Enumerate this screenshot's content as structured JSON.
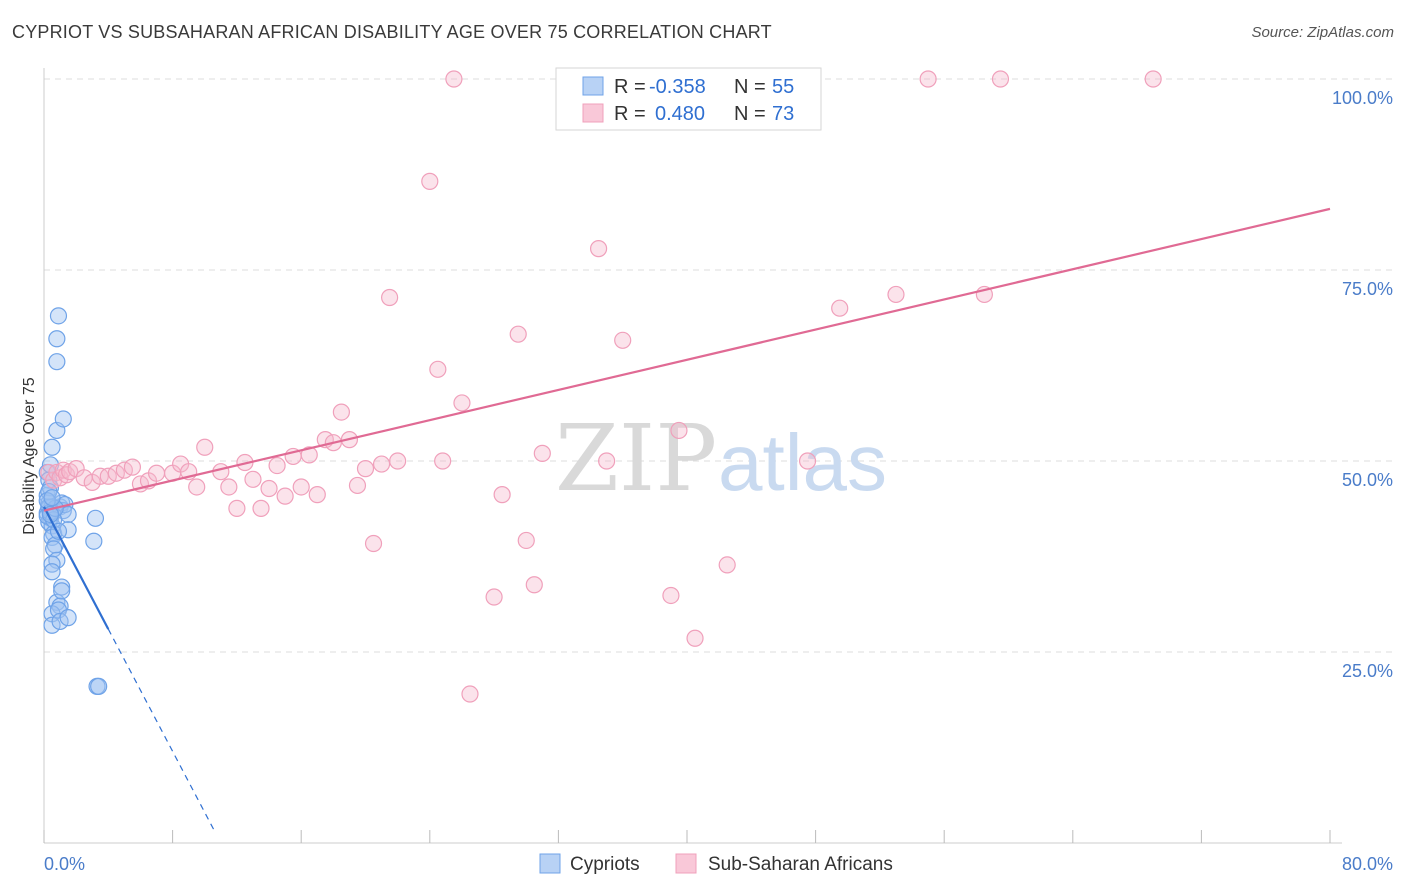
{
  "header": {
    "title": "CYPRIOT VS SUBSAHARAN AFRICAN DISABILITY AGE OVER 75 CORRELATION CHART",
    "source": "Source: ZipAtlas.com"
  },
  "watermark": {
    "zip": "ZIP",
    "atlas": "atlas"
  },
  "colors": {
    "cypriot": "#6fa3e8",
    "cypriot_line": "#2f6fd1",
    "subsaharan": "#f0a0bb",
    "subsaharan_line": "#e06a94",
    "tick": "#4a7cc9",
    "grid": "#dddddd"
  },
  "legend": {
    "r_label": "R =",
    "n_label": "N =",
    "cypriot_r": "-0.358",
    "cypriot_n": "55",
    "subsaharan_r": "0.480",
    "subsaharan_n": "73"
  },
  "bottom_legend": {
    "cypriot": "Cypriots",
    "subsaharan": "Sub-Saharan Africans"
  },
  "chart_data": {
    "type": "scatter",
    "xlabel": "",
    "ylabel": "Disability Age Over 75",
    "xlim": [
      0,
      80
    ],
    "ylim": [
      0,
      100
    ],
    "x_tick_labels": [
      {
        "value": 0,
        "label": "0.0%"
      },
      {
        "value": 80,
        "label": "80.0%"
      }
    ],
    "y_tick_labels": [
      {
        "value": 25,
        "label": "25.0%"
      },
      {
        "value": 50,
        "label": "50.0%"
      },
      {
        "value": 75,
        "label": "75.0%"
      },
      {
        "value": 100,
        "label": "100.0%"
      }
    ],
    "x_minor_ticks": [
      0,
      8,
      16,
      24,
      32,
      40,
      48,
      56,
      64,
      72,
      80
    ],
    "grid": true,
    "series": [
      {
        "name": "Cypriots",
        "trend": {
          "x0": 0,
          "y0": 44.0,
          "x1": 4.0,
          "y1": 28.0,
          "dash_to_x": 10.6
        },
        "points": [
          [
            0.2,
            48.5
          ],
          [
            0.2,
            45.5
          ],
          [
            0.3,
            44.5
          ],
          [
            0.3,
            43.8
          ],
          [
            0.2,
            43.2
          ],
          [
            0.4,
            42.5
          ],
          [
            0.3,
            42.0
          ],
          [
            0.5,
            44.0
          ],
          [
            0.6,
            43.5
          ],
          [
            0.5,
            41.5
          ],
          [
            0.6,
            40.5
          ],
          [
            0.5,
            40.0
          ],
          [
            0.7,
            39.0
          ],
          [
            0.6,
            38.5
          ],
          [
            0.8,
            37.0
          ],
          [
            0.5,
            36.5
          ],
          [
            0.5,
            35.5
          ],
          [
            0.3,
            47.5
          ],
          [
            0.4,
            46.5
          ],
          [
            0.4,
            49.5
          ],
          [
            0.5,
            51.8
          ],
          [
            0.8,
            54.0
          ],
          [
            1.2,
            55.5
          ],
          [
            0.8,
            63.0
          ],
          [
            0.8,
            66.0
          ],
          [
            0.9,
            69.0
          ],
          [
            1.0,
            44.0
          ],
          [
            1.1,
            44.5
          ],
          [
            1.2,
            43.5
          ],
          [
            1.3,
            44.3
          ],
          [
            1.5,
            43.0
          ],
          [
            1.5,
            41.0
          ],
          [
            0.8,
            31.5
          ],
          [
            1.0,
            31.0
          ],
          [
            1.1,
            33.5
          ],
          [
            1.1,
            33.0
          ],
          [
            0.5,
            30.0
          ],
          [
            0.5,
            28.5
          ],
          [
            0.9,
            30.5
          ],
          [
            1.0,
            29.0
          ],
          [
            1.5,
            29.5
          ],
          [
            3.2,
            42.5
          ],
          [
            3.1,
            39.5
          ],
          [
            3.3,
            20.5
          ],
          [
            3.4,
            20.5
          ],
          [
            0.3,
            44.0
          ],
          [
            0.2,
            42.8
          ],
          [
            0.4,
            43.3
          ],
          [
            0.6,
            42.3
          ],
          [
            0.7,
            43.8
          ],
          [
            0.9,
            40.8
          ],
          [
            0.3,
            46.0
          ],
          [
            0.2,
            44.8
          ],
          [
            0.5,
            45.2
          ],
          [
            0.4,
            43.0
          ]
        ]
      },
      {
        "name": "Sub-Saharan Africans",
        "trend": {
          "x0": 0,
          "y0": 43.5,
          "x1": 80,
          "y1": 83.0
        },
        "points": [
          [
            0.3,
            48.5
          ],
          [
            0.6,
            47.5
          ],
          [
            0.8,
            48.5
          ],
          [
            1.0,
            47.8
          ],
          [
            1.2,
            48.8
          ],
          [
            1.4,
            48.2
          ],
          [
            1.6,
            48.6
          ],
          [
            2.0,
            49.0
          ],
          [
            2.5,
            47.8
          ],
          [
            3.0,
            47.2
          ],
          [
            3.5,
            48.0
          ],
          [
            4.0,
            48.0
          ],
          [
            4.5,
            48.4
          ],
          [
            5.0,
            48.8
          ],
          [
            5.5,
            49.2
          ],
          [
            6.0,
            47.0
          ],
          [
            6.5,
            47.4
          ],
          [
            7.0,
            48.4
          ],
          [
            8.0,
            48.4
          ],
          [
            8.5,
            49.6
          ],
          [
            9.0,
            48.6
          ],
          [
            9.5,
            46.6
          ],
          [
            10.0,
            51.8
          ],
          [
            11.0,
            48.6
          ],
          [
            11.5,
            46.6
          ],
          [
            12.0,
            43.8
          ],
          [
            12.5,
            49.8
          ],
          [
            13.0,
            47.6
          ],
          [
            13.5,
            43.8
          ],
          [
            14.0,
            46.4
          ],
          [
            14.5,
            49.4
          ],
          [
            15.0,
            45.4
          ],
          [
            15.5,
            50.6
          ],
          [
            16.0,
            46.6
          ],
          [
            16.5,
            50.8
          ],
          [
            17.0,
            45.6
          ],
          [
            17.5,
            52.8
          ],
          [
            18.0,
            52.4
          ],
          [
            18.5,
            56.4
          ],
          [
            19.0,
            52.8
          ],
          [
            19.5,
            46.8
          ],
          [
            20.0,
            49.0
          ],
          [
            20.5,
            39.2
          ],
          [
            21.0,
            49.6
          ],
          [
            21.5,
            71.4
          ],
          [
            22.0,
            50.0
          ],
          [
            24.0,
            86.6
          ],
          [
            24.5,
            62.0
          ],
          [
            24.8,
            50.0
          ],
          [
            25.5,
            100.0
          ],
          [
            26.0,
            57.6
          ],
          [
            26.5,
            19.5
          ],
          [
            28.0,
            32.2
          ],
          [
            28.5,
            45.6
          ],
          [
            29.5,
            66.6
          ],
          [
            30.0,
            39.6
          ],
          [
            30.5,
            33.8
          ],
          [
            31.0,
            51.0
          ],
          [
            32.5,
            100.0
          ],
          [
            34.5,
            77.8
          ],
          [
            35.0,
            50.0
          ],
          [
            36.0,
            65.8
          ],
          [
            39.0,
            32.4
          ],
          [
            39.5,
            54.0
          ],
          [
            40.5,
            26.8
          ],
          [
            42.5,
            36.4
          ],
          [
            47.5,
            50.0
          ],
          [
            49.5,
            70.0
          ],
          [
            53.0,
            71.8
          ],
          [
            55.0,
            100.0
          ],
          [
            58.5,
            71.8
          ],
          [
            59.5,
            100.0
          ],
          [
            69.0,
            100.0
          ]
        ]
      }
    ]
  }
}
